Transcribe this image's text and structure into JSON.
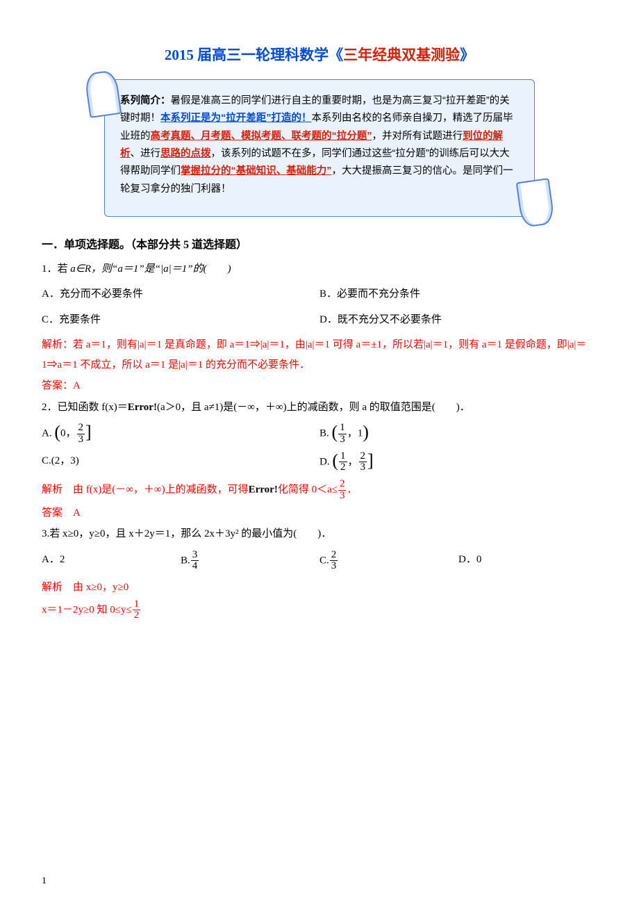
{
  "header": {
    "title_main": "2015 届高三一轮理科数学《",
    "title_sub": "三年经典双基测验",
    "title_close": "》"
  },
  "intro": {
    "lead": "系列简介：",
    "t1": "暑假是准高三的同学们进行自主的重要时期，也是为高三复习“拉开差距”的关键时期！",
    "link1": "本系列正是为“拉开差距”打造的！",
    "t2": "本系列由名校的名师亲自操刀，精选了历届毕业班的",
    "red1": "高考真题、月考题、模拟考题、联考题的“拉分题”",
    "t3": "，并对所有试题进行",
    "red2": "到位的解析",
    "t4": "、进行",
    "red3": "思路的点拨",
    "t5": "，该系列的试题不在多，同学们通过这些“拉分题”的训练后可以大大得帮助同学们",
    "red4": "掌握拉分的“基础知识、基础能力”",
    "t6": "，大大提振高三复习的信心。是同学们一轮复习拿分的独门利器！"
  },
  "section1_head": "一．单项选择题。（本部分共 5 道选择题）",
  "q1": {
    "stem_pre": "1．若 ",
    "stem_mid": "a∈R，则“a＝1”是“|a|＝1”的(　　)",
    "optA": "A．充分而不必要条件",
    "optB": "B．必要而不充分条件",
    "optC": "C．充要条件",
    "optD": "D．既不充分又不必要条件",
    "sol": "解析：若 a＝1，则有|a|＝1 是真命题，即 a＝1⇒|a|＝1，由|a|＝1 可得 a＝±1，所以若|a|＝1，则有 a＝1 是假命题，即|a|＝1⇒a＝1 不成立，所以 a＝1 是|a|＝1 的充分而不必要条件．",
    "ans": "答案：A"
  },
  "q2": {
    "stem": "2．已知函数 f(x)＝",
    "err": "Error!",
    "stem2": "(a＞0，且 a≠1)是(－∞，＋∞)上的减函数，则 a 的取值范围是(　　)．",
    "A_pre": "A.",
    "A_open": "(",
    "A_l": "0，",
    "A_num": "2",
    "A_den": "3",
    "A_close": "]",
    "B_pre": "B.",
    "B_open": "(",
    "B_lnum": "1",
    "B_lden": "3",
    "B_mid": "，1",
    "B_close": ")",
    "C_pre": "C.",
    "C_body": "(2，3)",
    "D_pre": "D.",
    "D_open": "(",
    "D_lnum": "1",
    "D_lden": "2",
    "D_mid": "，",
    "D_rnum": "2",
    "D_rden": "3",
    "D_close": "]",
    "sol_a": "解析　由 f(x)是(－∞，＋∞)上的减函数，可得",
    "sol_err": "Error!",
    "sol_b": "化简得 0＜a≤",
    "sol_num": "2",
    "sol_den": "3",
    "sol_dot": "．",
    "ans": "答案　A"
  },
  "q3": {
    "stem": "3.若 x≥0，y≥0，且 x＋2y＝1，那么 2x＋3y² 的最小值为(　　)．",
    "A": "A．2",
    "B_pre": "B.",
    "B_num": "3",
    "B_den": "4",
    "C_pre": "C.",
    "C_num": "2",
    "C_den": "3",
    "D": "D．0",
    "sol1": "解析　由 x≥0，y≥0",
    "sol2a": "x＝1－2y≥0 知 0≤y≤",
    "sol2_num": "1",
    "sol2_den": "2"
  },
  "page_number": "1"
}
